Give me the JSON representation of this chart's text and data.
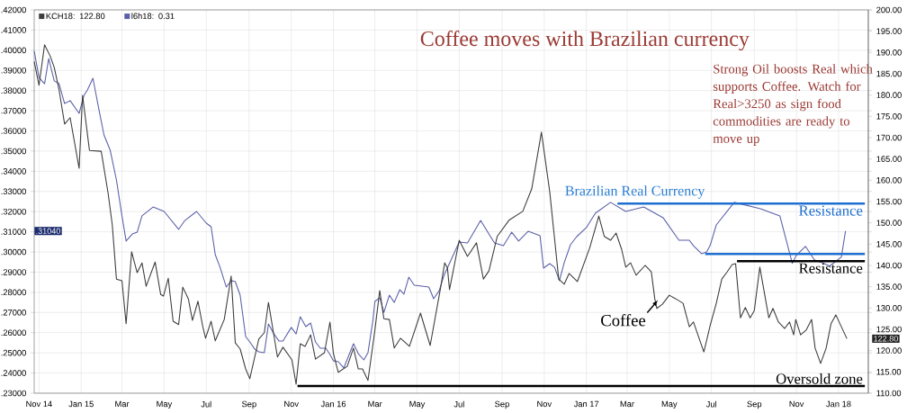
{
  "chart_data": {
    "type": "line",
    "title": "Coffee moves with Brazilian currency",
    "xlim": [
      "2014-10-25",
      "2018-02-13"
    ],
    "xticks": [
      {
        "value": "2014-11-01",
        "label": "Nov 14"
      },
      {
        "value": "2015-01-01",
        "label": "Jan 15"
      },
      {
        "value": "2015-03-01",
        "label": "Mar"
      },
      {
        "value": "2015-05-01",
        "label": "May"
      },
      {
        "value": "2015-07-01",
        "label": "Jul"
      },
      {
        "value": "2015-09-01",
        "label": "Sep"
      },
      {
        "value": "2015-11-01",
        "label": "Nov"
      },
      {
        "value": "2016-01-01",
        "label": "Jan 16"
      },
      {
        "value": "2016-03-01",
        "label": "Mar"
      },
      {
        "value": "2016-05-01",
        "label": "May"
      },
      {
        "value": "2016-07-01",
        "label": "Jul"
      },
      {
        "value": "2016-09-01",
        "label": "Sep"
      },
      {
        "value": "2016-11-01",
        "label": "Nov"
      },
      {
        "value": "2017-01-01",
        "label": "Jan 17"
      },
      {
        "value": "2017-03-01",
        "label": "Mar"
      },
      {
        "value": "2017-05-01",
        "label": "May"
      },
      {
        "value": "2017-07-01",
        "label": "Jul"
      },
      {
        "value": "2017-09-01",
        "label": "Sep"
      },
      {
        "value": "2017-11-01",
        "label": "Nov"
      },
      {
        "value": "2018-01-01",
        "label": "Jan 18"
      }
    ],
    "ylim": [
      0.23,
      0.42
    ],
    "yticks": [
      {
        "value": 0.23,
        "label": ".23000"
      },
      {
        "value": 0.24,
        "label": ".24000"
      },
      {
        "value": 0.25,
        "label": ".25000"
      },
      {
        "value": 0.26,
        "label": ".26000"
      },
      {
        "value": 0.27,
        "label": ".27000"
      },
      {
        "value": 0.28,
        "label": ".28000"
      },
      {
        "value": 0.29,
        "label": ".29000"
      },
      {
        "value": 0.3,
        "label": ".30000"
      },
      {
        "value": 0.31,
        "label": ".31000"
      },
      {
        "value": 0.32,
        "label": ".32000"
      },
      {
        "value": 0.33,
        "label": ".33000"
      },
      {
        "value": 0.34,
        "label": ".34000"
      },
      {
        "value": 0.35,
        "label": ".35000"
      },
      {
        "value": 0.36,
        "label": ".36000"
      },
      {
        "value": 0.37,
        "label": ".37000"
      },
      {
        "value": 0.38,
        "label": ".38000"
      },
      {
        "value": 0.39,
        "label": ".39000"
      },
      {
        "value": 0.4,
        "label": ".40000"
      },
      {
        "value": 0.41,
        "label": ".41000"
      },
      {
        "value": 0.42,
        "label": ".42000"
      }
    ],
    "y2lim": [
      110,
      200
    ],
    "y2ticks": [
      {
        "value": 110,
        "label": "110.00"
      },
      {
        "value": 115,
        "label": "115.00"
      },
      {
        "value": 120,
        "label": "120.00"
      },
      {
        "value": 125,
        "label": "125.00"
      },
      {
        "value": 130,
        "label": "130.00"
      },
      {
        "value": 135,
        "label": "135.00"
      },
      {
        "value": 140,
        "label": "140.00"
      },
      {
        "value": 145,
        "label": "145.00"
      },
      {
        "value": 150,
        "label": "150.00"
      },
      {
        "value": 155,
        "label": "155.00"
      },
      {
        "value": 160,
        "label": "160.00"
      },
      {
        "value": 165,
        "label": "165.00"
      },
      {
        "value": 170,
        "label": "170.00"
      },
      {
        "value": 175,
        "label": "175.00"
      },
      {
        "value": 180,
        "label": "180.00"
      },
      {
        "value": 185,
        "label": "185.00"
      },
      {
        "value": 190,
        "label": "190.00"
      },
      {
        "value": 195,
        "label": "195.00"
      },
      {
        "value": 200,
        "label": "200.00"
      }
    ],
    "grid": true,
    "legend": "top left",
    "series": [
      {
        "name": "KCH18: 122.80",
        "color": "#3c3c3c",
        "axis": "y2",
        "x": [
          "2014-10-25",
          "2014-11-01",
          "2014-11-09",
          "2014-11-17",
          "2014-11-23",
          "2014-11-30",
          "2014-12-08",
          "2014-12-16",
          "2014-12-29",
          "2015-01-03",
          "2015-01-13",
          "2015-01-30",
          "2015-02-09",
          "2015-02-15",
          "2015-02-21",
          "2015-03-01",
          "2015-03-07",
          "2015-03-15",
          "2015-03-23",
          "2015-03-30",
          "2015-04-05",
          "2015-04-18",
          "2015-04-26",
          "2015-04-30",
          "2015-05-07",
          "2015-05-14",
          "2015-05-22",
          "2015-05-28",
          "2015-06-05",
          "2015-06-11",
          "2015-06-19",
          "2015-06-26",
          "2015-06-30",
          "2015-07-08",
          "2015-07-14",
          "2015-07-27",
          "2015-08-06",
          "2015-08-12",
          "2015-08-19",
          "2015-08-27",
          "2015-09-02",
          "2015-09-15",
          "2015-09-23",
          "2015-09-29",
          "2015-10-12",
          "2015-10-20",
          "2015-11-02",
          "2015-11-08",
          "2015-11-14",
          "2015-11-21",
          "2015-11-29",
          "2015-12-06",
          "2015-12-19",
          "2015-12-27",
          "2016-01-01",
          "2016-01-08",
          "2016-01-21",
          "2016-01-30",
          "2016-02-06",
          "2016-02-12",
          "2016-02-20",
          "2016-03-01",
          "2016-03-08",
          "2016-03-14",
          "2016-03-22",
          "2016-03-29",
          "2016-04-07",
          "2016-04-20",
          "2016-05-06",
          "2016-05-20",
          "2016-06-04",
          "2016-06-10",
          "2016-06-14",
          "2016-06-17",
          "2016-07-01",
          "2016-07-13",
          "2016-07-26",
          "2016-08-05",
          "2016-08-13",
          "2016-08-25",
          "2016-09-11",
          "2016-10-01",
          "2016-10-14",
          "2016-10-28",
          "2016-11-09",
          "2016-11-17",
          "2016-11-22",
          "2016-11-30",
          "2016-12-07",
          "2016-12-19",
          "2017-01-06",
          "2017-01-19",
          "2017-01-27",
          "2017-02-05",
          "2017-02-13",
          "2017-02-21",
          "2017-02-27",
          "2017-03-06",
          "2017-03-14",
          "2017-03-27",
          "2017-04-05",
          "2017-04-10",
          "2017-04-13",
          "2017-04-21",
          "2017-05-01",
          "2017-05-10",
          "2017-05-21",
          "2017-05-30",
          "2017-06-05",
          "2017-06-20",
          "2017-06-26",
          "2017-06-29",
          "2017-07-08",
          "2017-07-16",
          "2017-07-23",
          "2017-07-31",
          "2017-08-05",
          "2017-08-12",
          "2017-08-19",
          "2017-08-26",
          "2017-09-01",
          "2017-09-09",
          "2017-09-22",
          "2017-09-28",
          "2017-10-06",
          "2017-10-15",
          "2017-10-22",
          "2017-10-28",
          "2017-10-31",
          "2017-11-07",
          "2017-11-15",
          "2017-11-23",
          "2017-11-28",
          "2017-12-06",
          "2017-12-14",
          "2017-12-21",
          "2017-12-28",
          "2018-01-13"
        ],
        "values": [
          187.9,
          182.3,
          191.8,
          189.2,
          186.5,
          181.2,
          173.2,
          174.7,
          162.8,
          179.9,
          167.0,
          166.8,
          156.9,
          149.5,
          136.8,
          136.4,
          126.3,
          143.2,
          138.3,
          140.6,
          135.1,
          140.8,
          133.2,
          132.8,
          137.0,
          126.9,
          126.1,
          134.9,
          132.2,
          127.1,
          131.6,
          125.6,
          122.9,
          126.9,
          122.3,
          127.3,
          137.5,
          121.8,
          120.4,
          115.7,
          113.4,
          122.7,
          124.2,
          131.3,
          118.5,
          120.8,
          117.8,
          112.1,
          121.6,
          121.0,
          123.7,
          118.0,
          119.5,
          126.7,
          119.3,
          114.9,
          116.3,
          120.6,
          115.7,
          115.7,
          113.0,
          124.8,
          134.1,
          127.5,
          127.3,
          120.6,
          122.9,
          121.0,
          128.8,
          121.2,
          134.7,
          140.6,
          139.4,
          134.3,
          145.9,
          142.1,
          145.3,
          136.8,
          138.7,
          146.8,
          150.6,
          152.7,
          158.0,
          171.3,
          157.3,
          144.7,
          136.8,
          135.6,
          138.1,
          136.2,
          144.2,
          151.6,
          146.8,
          145.9,
          147.6,
          143.8,
          139.6,
          140.6,
          137.7,
          140.0,
          138.5,
          132.2,
          129.9,
          130.9,
          133.0,
          132.2,
          131.1,
          125.6,
          126.7,
          119.7,
          123.7,
          125.8,
          131.1,
          136.8,
          138.3,
          140.2,
          140.4,
          127.7,
          130.1,
          127.7,
          129.4,
          139.6,
          127.7,
          129.9,
          126.7,
          125.2,
          126.7,
          123.7,
          127.3,
          123.7,
          124.8,
          127.3,
          120.6,
          117.0,
          120.6,
          126.3,
          128.4,
          122.8
        ]
      },
      {
        "name": "l6h18: 0.31",
        "color": "#5a5fa8",
        "axis": "y",
        "x": [
          "2014-10-25",
          "2014-11-01",
          "2014-11-09",
          "2014-11-15",
          "2014-11-23",
          "2014-11-30",
          "2014-12-08",
          "2014-12-16",
          "2014-12-29",
          "2015-01-05",
          "2015-01-10",
          "2015-01-18",
          "2015-01-27",
          "2015-02-03",
          "2015-02-12",
          "2015-02-21",
          "2015-03-01",
          "2015-03-07",
          "2015-03-16",
          "2015-03-23",
          "2015-03-30",
          "2015-04-15",
          "2015-05-01",
          "2015-05-22",
          "2015-05-31",
          "2015-06-17",
          "2015-07-01",
          "2015-07-08",
          "2015-07-14",
          "2015-07-21",
          "2015-07-30",
          "2015-08-06",
          "2015-08-12",
          "2015-08-19",
          "2015-08-27",
          "2015-09-02",
          "2015-09-09",
          "2015-09-15",
          "2015-09-23",
          "2015-09-29",
          "2015-10-06",
          "2015-10-14",
          "2015-10-20",
          "2015-11-01",
          "2015-11-08",
          "2015-11-14",
          "2015-11-22",
          "2015-11-29",
          "2015-12-06",
          "2015-12-13",
          "2015-12-21",
          "2015-12-27",
          "2016-01-01",
          "2016-01-08",
          "2016-01-16",
          "2016-01-30",
          "2016-02-06",
          "2016-02-14",
          "2016-02-20",
          "2016-02-27",
          "2016-03-01",
          "2016-03-08",
          "2016-03-14",
          "2016-03-22",
          "2016-03-29",
          "2016-04-06",
          "2016-04-12",
          "2016-04-19",
          "2016-04-27",
          "2016-05-18",
          "2016-05-25",
          "2016-06-02",
          "2016-06-09",
          "2016-06-15",
          "2016-07-01",
          "2016-07-13",
          "2016-08-01",
          "2016-08-21",
          "2016-09-03",
          "2016-09-15",
          "2016-09-25",
          "2016-10-09",
          "2016-10-26",
          "2016-10-31",
          "2016-11-09",
          "2016-11-16",
          "2016-11-23",
          "2016-11-30",
          "2016-12-09",
          "2016-12-18",
          "2017-01-01",
          "2017-01-14",
          "2017-02-05",
          "2017-02-27",
          "2017-03-25",
          "2017-04-22",
          "2017-05-15",
          "2017-05-30",
          "2017-06-05",
          "2017-06-17",
          "2017-06-24",
          "2017-06-29",
          "2017-07-08",
          "2017-08-03",
          "2017-09-10",
          "2017-10-08",
          "2017-10-26",
          "2017-11-01",
          "2017-11-14",
          "2017-11-27",
          "2017-12-10",
          "2017-12-19",
          "2018-01-05",
          "2018-01-11"
        ],
        "values": [
          0.3995,
          0.3865,
          0.3834,
          0.3959,
          0.3848,
          0.3834,
          0.3736,
          0.375,
          0.3687,
          0.3776,
          0.3803,
          0.3861,
          0.37,
          0.358,
          0.3504,
          0.3357,
          0.3179,
          0.3054,
          0.3089,
          0.3098,
          0.3179,
          0.3223,
          0.3201,
          0.3112,
          0.3156,
          0.3201,
          0.3143,
          0.3125,
          0.2987,
          0.2924,
          0.2826,
          0.2858,
          0.2853,
          0.2786,
          0.2581,
          0.2554,
          0.2519,
          0.2505,
          0.2501,
          0.2643,
          0.2599,
          0.2559,
          0.2559,
          0.2626,
          0.2594,
          0.2679,
          0.263,
          0.2648,
          0.2554,
          0.2523,
          0.2523,
          0.2492,
          0.2461,
          0.2456,
          0.2425,
          0.2545,
          0.2496,
          0.2465,
          0.2501,
          0.2657,
          0.2755,
          0.2773,
          0.2701,
          0.2786,
          0.275,
          0.2813,
          0.2791,
          0.2875,
          0.2835,
          0.2826,
          0.2768,
          0.2808,
          0.2884,
          0.2929,
          0.3049,
          0.3045,
          0.3156,
          0.3045,
          0.3031,
          0.3098,
          0.3054,
          0.3103,
          0.3081,
          0.292,
          0.2942,
          0.2924,
          0.2858,
          0.2947,
          0.3036,
          0.3076,
          0.3121,
          0.3192,
          0.3246,
          0.3201,
          0.3223,
          0.317,
          0.3058,
          0.3058,
          0.3031,
          0.2991,
          0.3,
          0.3031,
          0.3134,
          0.3246,
          0.3214,
          0.3179,
          0.2944,
          0.2984,
          0.3028,
          0.2961,
          0.2944,
          0.293,
          0.2975,
          0.3104
        ]
      },
      {
        "name": "Resistance",
        "color": "#1e6fd0",
        "axis": "y",
        "x": [
          "2017-02-15",
          "2018-02-08"
        ],
        "values": [
          0.324,
          0.324
        ]
      },
      {
        "color": "#1e6fd0",
        "axis": "y",
        "x": [
          "2017-06-22",
          "2018-02-08"
        ],
        "values": [
          0.299,
          0.299
        ]
      },
      {
        "name": "Resistance",
        "color": "#000000",
        "axis": "y2",
        "x": [
          "2017-08-07",
          "2018-02-08"
        ],
        "values": [
          141,
          141
        ]
      },
      {
        "name": "Oversold zone",
        "color": "#000000",
        "axis": "y2",
        "x": [
          "2015-11-10",
          "2018-02-08"
        ],
        "values": [
          111.7,
          111.7
        ]
      }
    ],
    "annotations": [
      "Strong Oil boosts Real which supports Coffee. Watch for Real>3250 as sign food commodities are ready to move up",
      "Brazilian Real Currency",
      "Coffee",
      ".31040",
      "122.80"
    ]
  }
}
